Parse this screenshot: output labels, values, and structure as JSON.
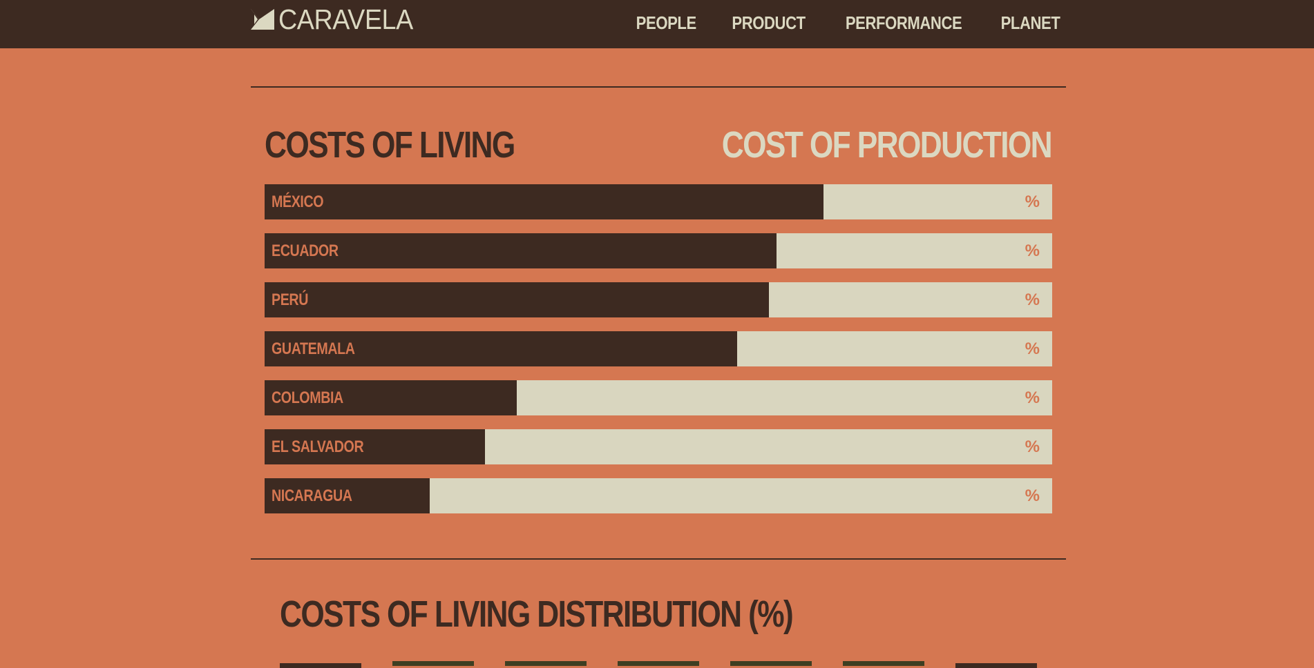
{
  "brand": {
    "name": "CARAVELA",
    "logo_icon": "caravela-flag-icon"
  },
  "nav": {
    "items": [
      {
        "label": "PEOPLE"
      },
      {
        "label": "PRODUCT"
      },
      {
        "label": "PERFORMANCE"
      },
      {
        "label": "PLANET"
      }
    ]
  },
  "colors": {
    "background": "#d57751",
    "dark": "#3d2a21",
    "light": "#dbd8c1",
    "olive": "#3e3f22"
  },
  "section_costs": {
    "title_left": "COSTS OF LIVING",
    "title_right": "COST OF PRODUCTION",
    "rows": [
      {
        "country": "MÉXICO",
        "pct_label": "%",
        "fill": 0.71
      },
      {
        "country": "ECUADOR",
        "pct_label": "%",
        "fill": 0.65
      },
      {
        "country": "PERÚ",
        "pct_label": "%",
        "fill": 0.64
      },
      {
        "country": "GUATEMALA",
        "pct_label": "%",
        "fill": 0.6
      },
      {
        "country": "COLOMBIA",
        "pct_label": "%",
        "fill": 0.32
      },
      {
        "country": "EL SALVADOR",
        "pct_label": "%",
        "fill": 0.28
      },
      {
        "country": "NICARAGUA",
        "pct_label": "%",
        "fill": 0.21
      }
    ]
  },
  "section_distribution": {
    "title": "COSTS OF LIVING DISTRIBUTION (%)"
  }
}
